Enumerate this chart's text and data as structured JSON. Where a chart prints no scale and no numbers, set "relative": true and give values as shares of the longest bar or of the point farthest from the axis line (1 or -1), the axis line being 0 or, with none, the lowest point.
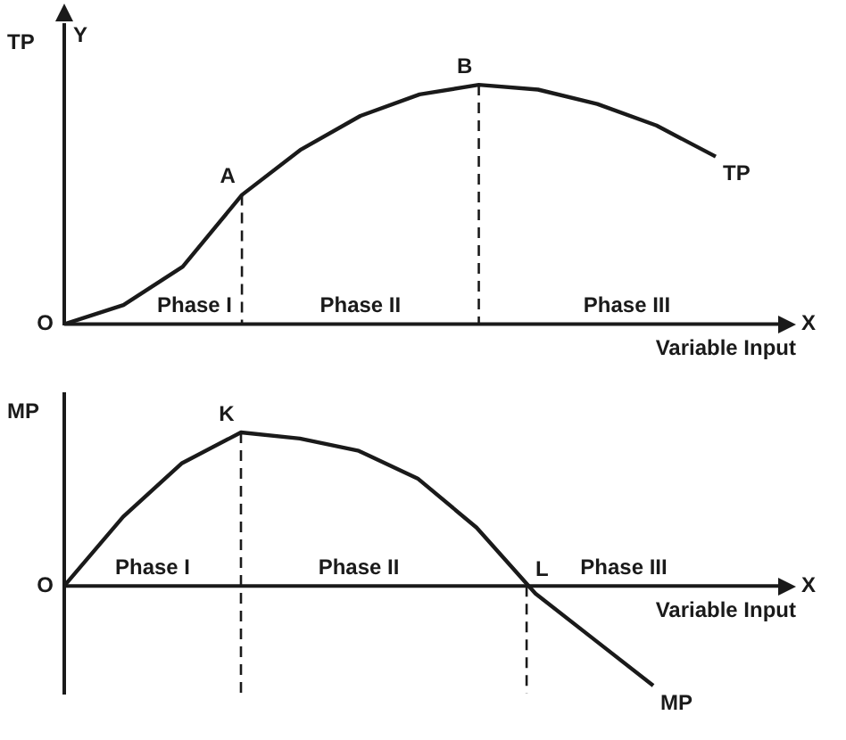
{
  "chart_data": [
    {
      "type": "line",
      "relative": true,
      "ylabel": "TP",
      "xlabel": "Variable Input",
      "categories": [
        null,
        null,
        null,
        null,
        null,
        null,
        null,
        null,
        null,
        null,
        null,
        null
      ],
      "legend": false,
      "grid": false,
      "marker": "none",
      "line_style": "solid",
      "series": [
        {
          "name": "TP",
          "color": "#1a1a1a",
          "values": [
            0,
            0.08,
            0.24,
            0.54,
            0.73,
            0.87,
            0.96,
            1,
            0.98,
            0.92,
            0.83,
            0.7
          ]
        }
      ],
      "annotations": [
        "A",
        "B",
        "Phase I",
        "Phase II",
        "Phase III",
        "X",
        "Y",
        "O"
      ]
    },
    {
      "type": "line",
      "relative": true,
      "ylabel": "MP",
      "xlabel": "Variable Input",
      "categories": [
        null,
        null,
        null,
        null,
        null,
        null,
        null,
        null,
        null,
        null,
        null
      ],
      "legend": false,
      "grid": false,
      "marker": "none",
      "line_style": "solid",
      "series": [
        {
          "name": "MP",
          "color": "#1a1a1a",
          "values": [
            0,
            0.45,
            0.8,
            1,
            0.96,
            0.88,
            0.7,
            0.38,
            -0.05,
            -0.35,
            -0.65
          ]
        }
      ],
      "annotations": [
        "K",
        "L",
        "Phase I",
        "Phase II",
        "Phase III",
        "X",
        "O"
      ]
    }
  ]
}
